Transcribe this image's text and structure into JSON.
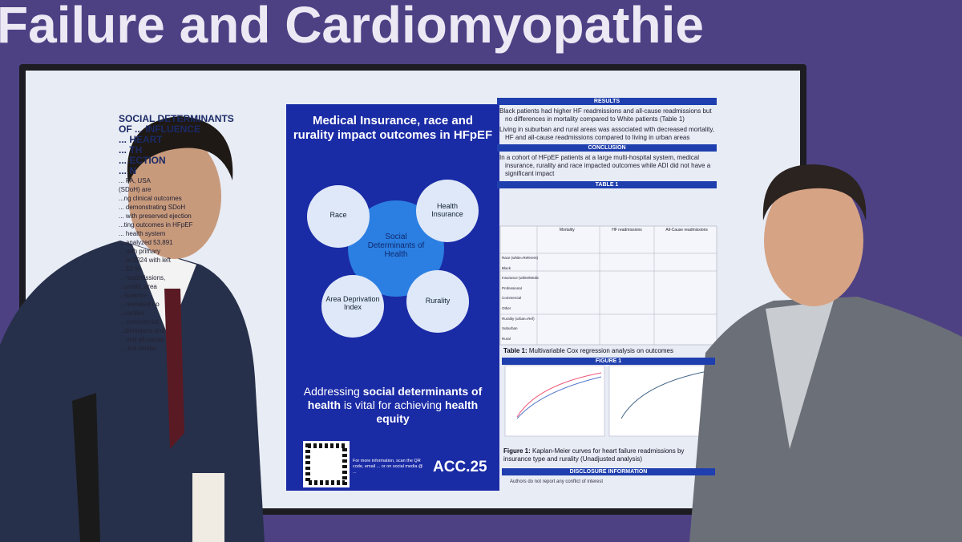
{
  "banner": "Failure and Cardiomyopathie",
  "left_column": {
    "fragments": [
      "SOCIAL DETERMINANTS",
      "OF ... INFLUENCE",
      "... HEART",
      "... TH",
      "... ECTION",
      "... N",
      "... PA, USA",
      "(SDoH) are",
      "...ng clinical outcomes",
      "... demonstrating SDoH",
      "... with preserved ejection",
      "...ting outcomes in HFpEF",
      "... health system",
      "... analyzed 53,891",
      "... with primary",
      "... to 2024 with left",
      "... 50 %",
      "... readmissions,",
      "...urality, area",
      "...surance",
      "... revealed no",
      "...uartiles",
      "... commercial",
      "...dmissions and",
      "... and all-cause",
      "..., but similar"
    ]
  },
  "center_panel": {
    "headline": "Medical Insurance, race and rurality impact outcomes in HFpEF",
    "hub": "Social Determinants of Health",
    "factors": [
      "Race",
      "Health Insurance",
      "Area Deprivation Index",
      "Rurality"
    ],
    "statement": [
      "Addressing ",
      "social determinants of health",
      " is vital for achieving ",
      "health equity"
    ],
    "contact": "For more information, scan the QR code, email ... or on social media @ ...",
    "logo": "ACC.25"
  },
  "results": {
    "title": "RESULTS",
    "bullets": [
      "Black patients had higher HF readmissions and all-cause readmissions but no differences in mortality compared to White patients (Table 1)",
      "Living in suburban and rural areas was associated with decreased mortality, HF and all-cause readmissions compared to living in urban areas"
    ]
  },
  "conclusion": {
    "title": "CONCLUSION",
    "bullets": [
      "In a cohort of HFpEF patients at a large multi-hospital system, medical insurance, rurality and race impacted outcomes while ADI did not have a significant impact"
    ]
  },
  "table": {
    "title": "TABLE 1",
    "columns": [
      "Mortality",
      "HF readmissions",
      "All-Cause readmissions"
    ],
    "rows": [
      "Race (white=Referent)",
      "Black",
      "Insurance (white/Medicaid)",
      "Professional",
      "Commercial",
      "Other",
      "Rurality (urban=Ref)",
      "Suburban",
      "Rural"
    ],
    "caption": [
      "Table 1:",
      " Multivariable Cox regression analysis on outcomes"
    ]
  },
  "figure": {
    "title": "FIGURE 1",
    "caption": [
      "Figure 1:",
      " Kaplan-Meier curves for heart failure readmissions by insurance type and rurality (Unadjusted analysis)"
    ]
  },
  "disclosure": {
    "title": "DISCLOSURE INFORMATION",
    "text": "Authors do not report any conflict of interest"
  }
}
